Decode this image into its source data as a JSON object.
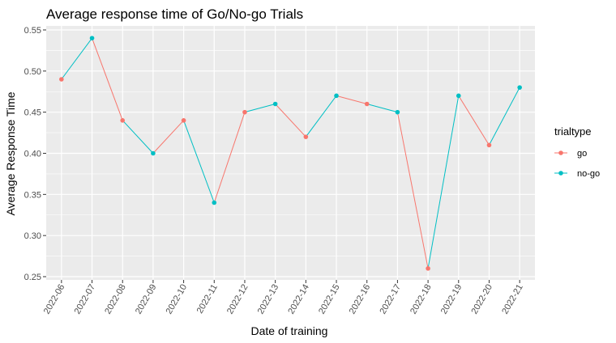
{
  "chart_data": {
    "type": "line",
    "title": "Average response time of Go/No-go Trials",
    "xlabel": "Date of training",
    "ylabel": "Average Response Time",
    "categories": [
      "2022-06",
      "2022-07",
      "2022-08",
      "2022-09",
      "2022-10",
      "2022-11",
      "2022-12",
      "2022-13",
      "2022-14",
      "2022-15",
      "2022-16",
      "2022-17",
      "2022-18",
      "2022-19",
      "2022-20",
      "2022-21"
    ],
    "values": [
      0.49,
      0.54,
      0.44,
      0.4,
      0.44,
      0.34,
      0.45,
      0.46,
      0.42,
      0.47,
      0.46,
      0.45,
      0.26,
      0.47,
      0.41,
      0.48
    ],
    "trialtype": [
      "go",
      "no-go",
      "go",
      "no-go",
      "go",
      "no-go",
      "go",
      "no-go",
      "go",
      "no-go",
      "go",
      "no-go",
      "go",
      "no-go",
      "go",
      "no-go"
    ],
    "ylim": [
      0.25,
      0.55
    ],
    "yticks": [
      0.25,
      0.3,
      0.35,
      0.4,
      0.45,
      0.5,
      0.55
    ],
    "ytick_labels": [
      "0.25",
      "0.30",
      "0.35",
      "0.40",
      "0.45",
      "0.50",
      "0.55"
    ],
    "legend": {
      "title": "trialtype",
      "position": "right",
      "entries": [
        {
          "name": "go",
          "color": "#F8766D"
        },
        {
          "name": "no-go",
          "color": "#00BFC4"
        }
      ]
    },
    "colors": {
      "panel": "#EBEBEB",
      "grid": "#FFFFFF"
    }
  }
}
